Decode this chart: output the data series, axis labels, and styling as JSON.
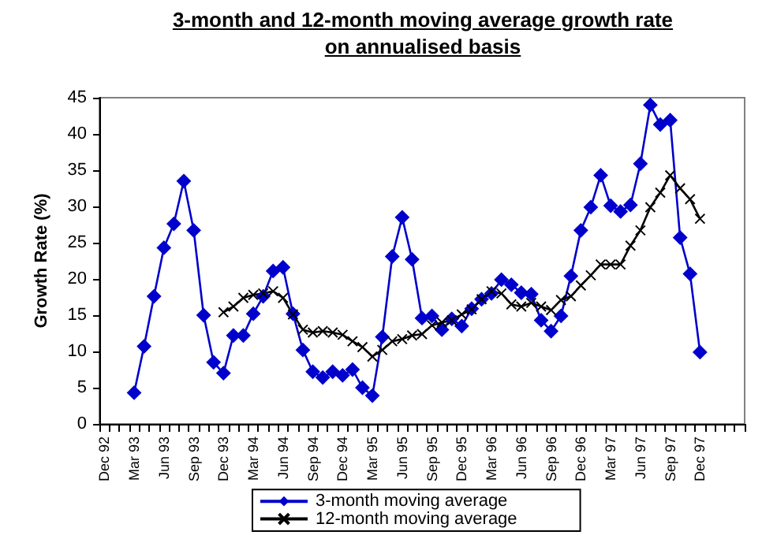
{
  "chart_data": {
    "type": "line",
    "title": "3-month and 12-month moving average growth rate\non annualised basis",
    "ylabel": "Growth Rate (%)",
    "categories": [
      "Dec 92",
      null,
      null,
      "Mar 93",
      null,
      null,
      "Jun 93",
      null,
      null,
      "Sep 93",
      null,
      null,
      "Dec 93",
      null,
      null,
      "Mar 94",
      null,
      null,
      "Jun 94",
      null,
      null,
      "Sep 94",
      null,
      null,
      "Dec 94",
      null,
      null,
      "Mar 95",
      null,
      null,
      "Jun 95",
      null,
      null,
      "Sep 95",
      null,
      null,
      "Dec 95",
      null,
      null,
      "Mar 96",
      null,
      null,
      "Jun 96",
      null,
      null,
      "Sep 96",
      null,
      null,
      "Dec 96",
      null,
      null,
      "Mar 97",
      null,
      null,
      "Jun 97",
      null,
      null,
      "Sep 97",
      null,
      null,
      "Dec 97",
      null,
      null,
      null,
      null
    ],
    "series": [
      {
        "name": "3-month moving average",
        "color": "#0000cc",
        "marker": "diamond",
        "values": [
          null,
          null,
          null,
          4.3,
          10.7,
          17.6,
          24.3,
          27.6,
          33.5,
          26.7,
          15.0,
          8.5,
          7.0,
          12.2,
          12.2,
          15.2,
          17.6,
          21.1,
          21.6,
          15.2,
          10.2,
          7.2,
          6.4,
          7.2,
          6.7,
          7.5,
          5.0,
          3.9,
          12.0,
          23.1,
          28.5,
          22.7,
          14.6,
          14.9,
          13.0,
          14.5,
          13.5,
          15.9,
          17.2,
          18.0,
          19.9,
          19.2,
          18.1,
          17.9,
          14.3,
          12.8,
          14.9,
          20.4,
          26.7,
          29.9,
          34.3,
          30.1,
          29.3,
          30.2,
          35.9,
          44.0,
          41.3,
          41.9,
          25.7,
          20.7,
          9.9,
          null,
          null,
          null,
          null
        ]
      },
      {
        "name": "12-month moving average",
        "color": "#000000",
        "marker": "cross",
        "values": [
          null,
          null,
          null,
          null,
          null,
          null,
          null,
          null,
          null,
          null,
          null,
          null,
          15.4,
          16.2,
          17.4,
          17.8,
          18.0,
          18.3,
          17.4,
          15.1,
          13.0,
          12.6,
          12.8,
          12.6,
          12.3,
          11.4,
          10.6,
          9.3,
          10.2,
          11.4,
          11.7,
          12.2,
          12.4,
          13.6,
          14.0,
          14.3,
          15.1,
          15.8,
          17.2,
          18.3,
          18.0,
          16.5,
          16.2,
          16.7,
          16.2,
          15.7,
          17.1,
          17.6,
          19.1,
          20.5,
          22.0,
          22.0,
          22.0,
          24.6,
          26.7,
          29.9,
          31.9,
          34.3,
          32.5,
          31.0,
          28.3,
          null,
          null,
          null,
          null
        ]
      }
    ],
    "ylim": [
      0,
      45
    ],
    "yticks": [
      0,
      5,
      10,
      15,
      20,
      25,
      30,
      35,
      40,
      45
    ],
    "grid": false,
    "legend": "bottom"
  }
}
